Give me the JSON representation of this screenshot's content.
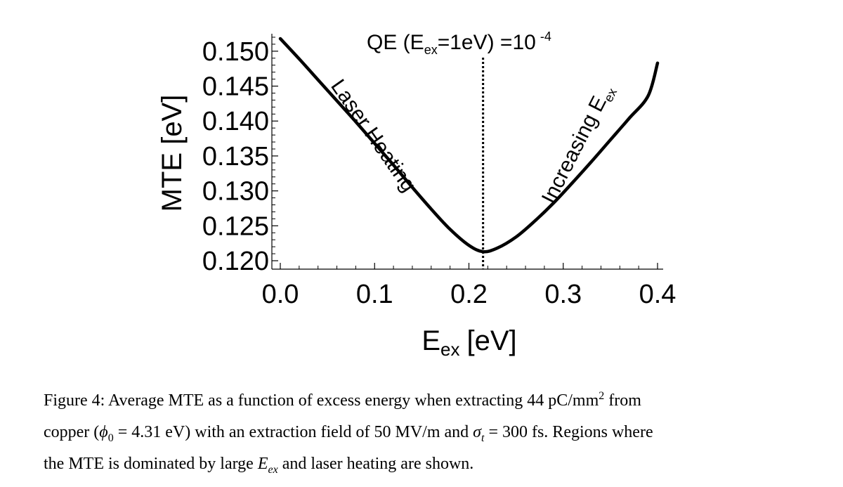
{
  "chart_data": {
    "type": "line",
    "xlabel": {
      "main": "E",
      "sub": "ex",
      "unit": "[eV]"
    },
    "ylabel": "MTE [eV]",
    "xlim": [
      0.0,
      0.4
    ],
    "ylim": [
      0.12,
      0.1525
    ],
    "x_ticks": [
      "0.0",
      "0.1",
      "0.2",
      "0.3",
      "0.4"
    ],
    "y_ticks": [
      "0.120",
      "0.125",
      "0.130",
      "0.135",
      "0.140",
      "0.145",
      "0.150"
    ],
    "grid": false,
    "series": [
      {
        "x": [
          0.0,
          0.02,
          0.04,
          0.06,
          0.08,
          0.1,
          0.12,
          0.14,
          0.16,
          0.18,
          0.2,
          0.215,
          0.23,
          0.25,
          0.27,
          0.29,
          0.31,
          0.33,
          0.35,
          0.37,
          0.39,
          0.4
        ],
        "y": [
          0.1518,
          0.1489,
          0.1459,
          0.1429,
          0.1399,
          0.1368,
          0.1337,
          0.1305,
          0.1274,
          0.1245,
          0.1222,
          0.1213,
          0.1218,
          0.1234,
          0.1257,
          0.1283,
          0.1312,
          0.1342,
          0.1373,
          0.1404,
          0.1436,
          0.1483
        ]
      }
    ],
    "vline": {
      "x": 0.215,
      "style": "dotted"
    },
    "annotations": {
      "qe": {
        "prefix": "QE (E",
        "sub": "ex",
        "mid": "=1eV) =10",
        "sup": "-4"
      },
      "left_region": "Laser Heating",
      "right_region": {
        "main": "Increasing E",
        "sub": "ex"
      }
    }
  },
  "caption": {
    "line1": {
      "a": "Figure 4:  Average MTE as a function of excess energy when extracting 44 pC/mm",
      "sup": "2",
      "b": " from"
    },
    "line2": {
      "a": "copper (",
      "phi": "ϕ",
      "phi_sub": "0",
      "b": " = 4.31 eV) with an extraction field of 50 MV/m and ",
      "sigma": "σ",
      "sigma_sub": "t",
      "c": " = 300 fs.  Regions where"
    },
    "line3": {
      "a": "the MTE is dominated by large ",
      "e": "E",
      "e_sub": "ex",
      "b": " and laser heating are shown."
    }
  }
}
